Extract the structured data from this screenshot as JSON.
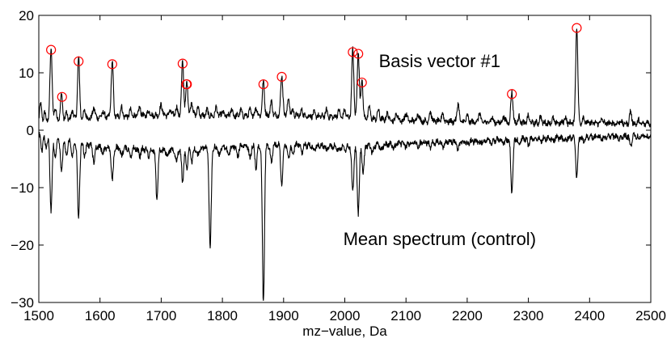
{
  "chart_data": {
    "type": "line",
    "title": "",
    "xlabel": "mz−value, Da",
    "ylabel": "",
    "xlim": [
      1500,
      2500
    ],
    "ylim": [
      -30,
      20
    ],
    "x_ticks": [
      1500,
      1600,
      1700,
      1800,
      1900,
      2000,
      2100,
      2200,
      2300,
      2400,
      2500
    ],
    "y_ticks": [
      -30,
      -20,
      -10,
      0,
      10,
      20
    ],
    "y_tick_labels": [
      "−30",
      "−20",
      "−10",
      "0",
      "10",
      "20"
    ],
    "grid": false,
    "series": [
      {
        "name": "Basis vector #1",
        "color": "#000000",
        "baseline": [
          [
            1500,
            1.0
          ],
          [
            1600,
            1.8
          ],
          [
            1700,
            2.2
          ],
          [
            1800,
            2.0
          ],
          [
            1900,
            2.2
          ],
          [
            2000,
            1.8
          ],
          [
            2100,
            1.2
          ],
          [
            2200,
            1.0
          ],
          [
            2300,
            0.8
          ],
          [
            2400,
            0.8
          ],
          [
            2500,
            0.6
          ]
        ],
        "peaks": [
          [
            1503,
            4.0
          ],
          [
            1510,
            2.5
          ],
          [
            1520,
            14.0
          ],
          [
            1527,
            3.5
          ],
          [
            1537,
            5.8
          ],
          [
            1545,
            2.5
          ],
          [
            1555,
            3.0
          ],
          [
            1565,
            12.0
          ],
          [
            1575,
            3.0
          ],
          [
            1590,
            3.5
          ],
          [
            1605,
            2.8
          ],
          [
            1620,
            11.5
          ],
          [
            1635,
            3.5
          ],
          [
            1650,
            3.0
          ],
          [
            1665,
            3.5
          ],
          [
            1680,
            3.0
          ],
          [
            1700,
            4.0
          ],
          [
            1715,
            3.0
          ],
          [
            1725,
            3.5
          ],
          [
            1735,
            11.5
          ],
          [
            1742,
            8.0
          ],
          [
            1750,
            4.5
          ],
          [
            1760,
            3.5
          ],
          [
            1775,
            3.0
          ],
          [
            1790,
            3.5
          ],
          [
            1800,
            2.8
          ],
          [
            1815,
            3.2
          ],
          [
            1830,
            3.0
          ],
          [
            1845,
            3.0
          ],
          [
            1855,
            3.5
          ],
          [
            1867,
            8.0
          ],
          [
            1880,
            4.5
          ],
          [
            1897,
            9.3
          ],
          [
            1908,
            5.0
          ],
          [
            1915,
            3.0
          ],
          [
            1930,
            3.0
          ],
          [
            1950,
            2.5
          ],
          [
            1970,
            3.0
          ],
          [
            1990,
            3.0
          ],
          [
            2000,
            3.0
          ],
          [
            2013,
            13.5
          ],
          [
            2022,
            13.2
          ],
          [
            2028,
            8.2
          ],
          [
            2040,
            3.5
          ],
          [
            2055,
            3.0
          ],
          [
            2070,
            2.5
          ],
          [
            2085,
            2.5
          ],
          [
            2100,
            2.5
          ],
          [
            2120,
            2.5
          ],
          [
            2140,
            2.8
          ],
          [
            2160,
            2.5
          ],
          [
            2185,
            4.2
          ],
          [
            2200,
            2.0
          ],
          [
            2220,
            2.5
          ],
          [
            2240,
            1.8
          ],
          [
            2260,
            2.0
          ],
          [
            2273,
            6.3
          ],
          [
            2285,
            1.8
          ],
          [
            2300,
            2.0
          ],
          [
            2320,
            1.8
          ],
          [
            2340,
            1.5
          ],
          [
            2360,
            1.8
          ],
          [
            2379,
            17.8
          ],
          [
            2390,
            1.8
          ],
          [
            2420,
            1.5
          ],
          [
            2450,
            1.2
          ],
          [
            2467,
            2.8
          ],
          [
            2480,
            1.2
          ],
          [
            2495,
            1.0
          ]
        ]
      },
      {
        "name": "Mean spectrum (control)",
        "color": "#000000",
        "baseline": [
          [
            1500,
            -0.3
          ],
          [
            1600,
            -2.5
          ],
          [
            1700,
            -3.0
          ],
          [
            1800,
            -2.5
          ],
          [
            1900,
            -2.0
          ],
          [
            2000,
            -2.5
          ],
          [
            2100,
            -1.8
          ],
          [
            2200,
            -1.5
          ],
          [
            2300,
            -1.0
          ],
          [
            2400,
            -0.8
          ],
          [
            2500,
            -0.5
          ]
        ],
        "peaks": [
          [
            1505,
            -3.0
          ],
          [
            1512,
            -2.5
          ],
          [
            1520,
            -13.5
          ],
          [
            1527,
            -4.0
          ],
          [
            1537,
            -7.0
          ],
          [
            1545,
            -4.0
          ],
          [
            1555,
            -4.0
          ],
          [
            1565,
            -15.0
          ],
          [
            1575,
            -4.0
          ],
          [
            1590,
            -5.0
          ],
          [
            1605,
            -3.5
          ],
          [
            1620,
            -8.5
          ],
          [
            1635,
            -4.0
          ],
          [
            1650,
            -4.0
          ],
          [
            1665,
            -4.0
          ],
          [
            1680,
            -4.0
          ],
          [
            1693,
            -11.5
          ],
          [
            1710,
            -4.0
          ],
          [
            1725,
            -5.0
          ],
          [
            1735,
            -8.5
          ],
          [
            1742,
            -6.0
          ],
          [
            1750,
            -5.0
          ],
          [
            1760,
            -4.0
          ],
          [
            1780,
            -20.0
          ],
          [
            1795,
            -4.0
          ],
          [
            1810,
            -4.0
          ],
          [
            1825,
            -4.0
          ],
          [
            1845,
            -4.5
          ],
          [
            1855,
            -6.0
          ],
          [
            1867,
            -29.5
          ],
          [
            1880,
            -5.0
          ],
          [
            1897,
            -9.0
          ],
          [
            1908,
            -4.5
          ],
          [
            1915,
            -4.0
          ],
          [
            1930,
            -3.5
          ],
          [
            1950,
            -3.0
          ],
          [
            1970,
            -3.0
          ],
          [
            1990,
            -3.0
          ],
          [
            2000,
            -3.0
          ],
          [
            2013,
            -10.0
          ],
          [
            2022,
            -14.0
          ],
          [
            2030,
            -7.0
          ],
          [
            2045,
            -3.5
          ],
          [
            2060,
            -3.0
          ],
          [
            2080,
            -2.8
          ],
          [
            2100,
            -2.5
          ],
          [
            2120,
            -2.5
          ],
          [
            2140,
            -2.5
          ],
          [
            2160,
            -2.5
          ],
          [
            2185,
            -3.0
          ],
          [
            2200,
            -2.0
          ],
          [
            2220,
            -2.0
          ],
          [
            2240,
            -1.8
          ],
          [
            2260,
            -1.8
          ],
          [
            2273,
            -10.5
          ],
          [
            2285,
            -2.0
          ],
          [
            2300,
            -2.0
          ],
          [
            2320,
            -1.5
          ],
          [
            2340,
            -1.5
          ],
          [
            2360,
            -1.5
          ],
          [
            2379,
            -7.5
          ],
          [
            2390,
            -1.5
          ],
          [
            2420,
            -1.2
          ],
          [
            2450,
            -1.0
          ],
          [
            2467,
            -2.2
          ],
          [
            2480,
            -1.0
          ],
          [
            2495,
            -0.8
          ]
        ]
      }
    ],
    "markers": {
      "shape": "circle",
      "color": "#ff0000",
      "points": [
        [
          1520,
          14.0
        ],
        [
          1538,
          5.8
        ],
        [
          1565,
          12.0
        ],
        [
          1620,
          11.5
        ],
        [
          1735,
          11.6
        ],
        [
          1741,
          8.0
        ],
        [
          1742,
          8.0
        ],
        [
          1867,
          8.0
        ],
        [
          1897,
          9.3
        ],
        [
          2013,
          13.6
        ],
        [
          2022,
          13.3
        ],
        [
          2028,
          8.3
        ],
        [
          2273,
          6.3
        ],
        [
          2379,
          17.8
        ]
      ]
    },
    "annotations": [
      {
        "text": "Basis vector #1",
        "x": 2155,
        "y": 11.0,
        "anchor": "middle"
      },
      {
        "text": "Mean spectrum (control)",
        "x": 2155,
        "y": -20.0,
        "anchor": "middle"
      }
    ]
  }
}
